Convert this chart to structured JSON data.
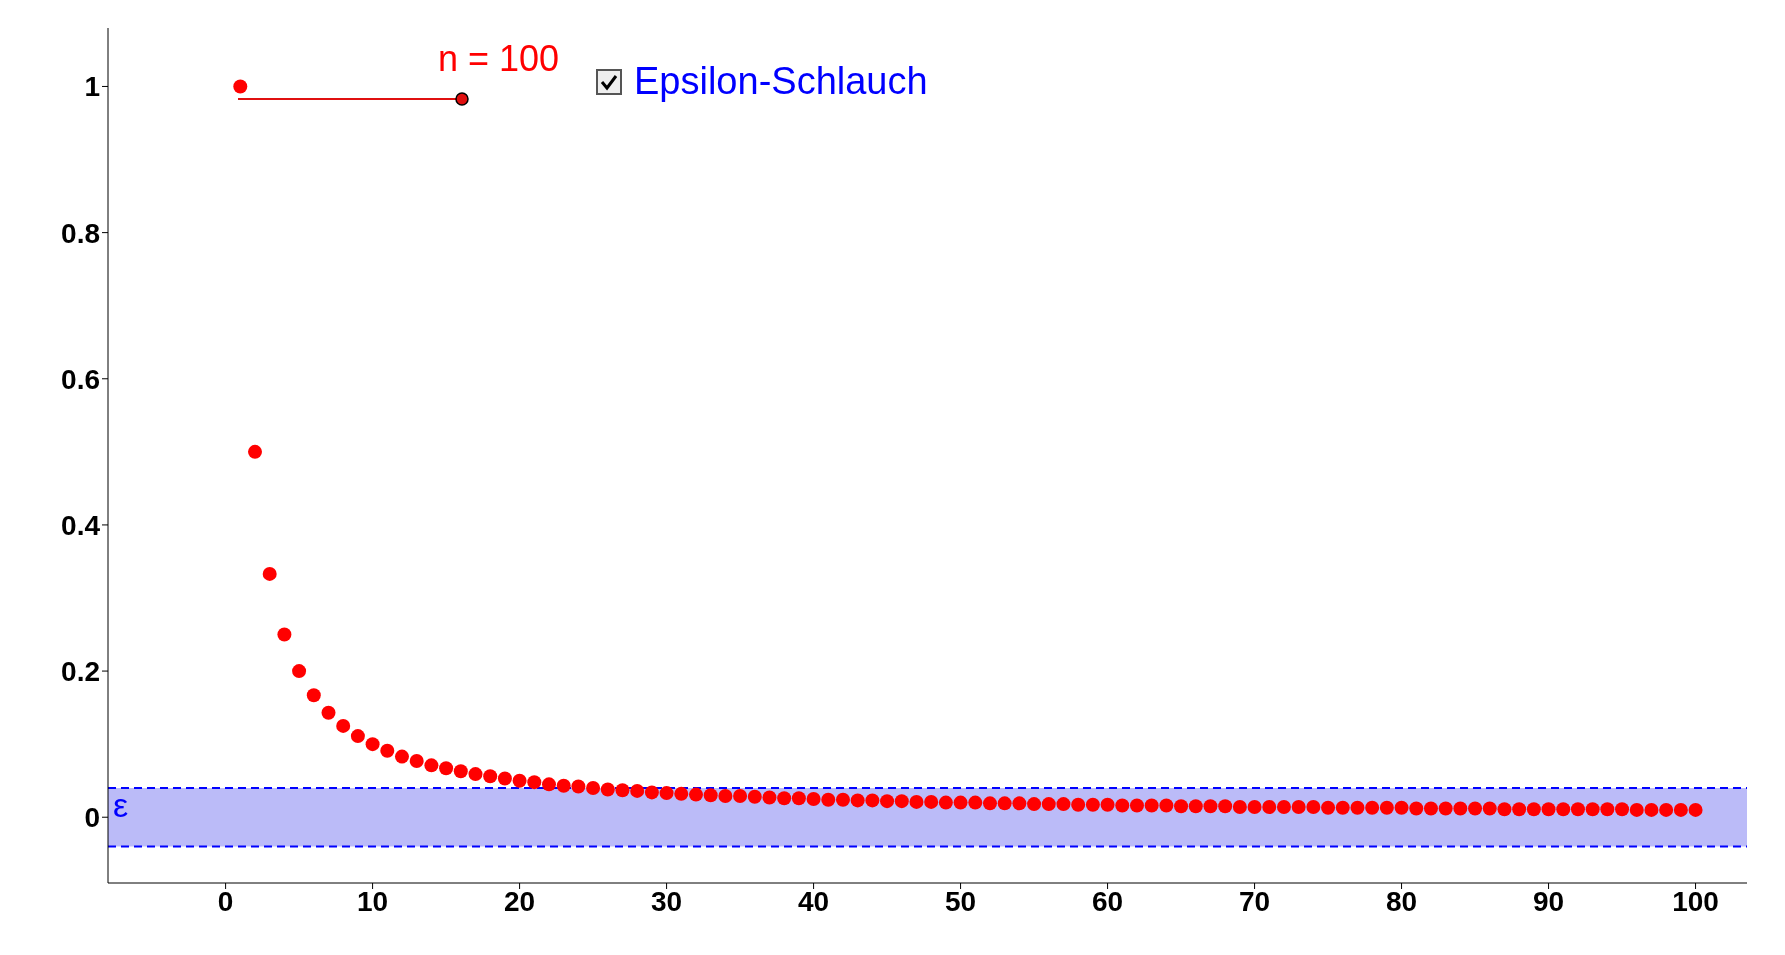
{
  "chart_data": {
    "type": "scatter",
    "marker": "circle",
    "x": [
      1,
      2,
      3,
      4,
      5,
      6,
      7,
      8,
      9,
      10,
      11,
      12,
      13,
      14,
      15,
      16,
      17,
      18,
      19,
      20,
      21,
      22,
      23,
      24,
      25,
      26,
      27,
      28,
      29,
      30,
      31,
      32,
      33,
      34,
      35,
      36,
      37,
      38,
      39,
      40,
      41,
      42,
      43,
      44,
      45,
      46,
      47,
      48,
      49,
      50,
      51,
      52,
      53,
      54,
      55,
      56,
      57,
      58,
      59,
      60,
      61,
      62,
      63,
      64,
      65,
      66,
      67,
      68,
      69,
      70,
      71,
      72,
      73,
      74,
      75,
      76,
      77,
      78,
      79,
      80,
      81,
      82,
      83,
      84,
      85,
      86,
      87,
      88,
      89,
      90,
      91,
      92,
      93,
      94,
      95,
      96,
      97,
      98,
      99,
      100
    ],
    "series": [
      {
        "color": "#ff0000",
        "values": [
          1,
          0.5,
          0.333,
          0.25,
          0.2,
          0.167,
          0.143,
          0.125,
          0.111,
          0.1,
          0.091,
          0.083,
          0.077,
          0.071,
          0.067,
          0.063,
          0.059,
          0.056,
          0.053,
          0.05,
          0.048,
          0.045,
          0.043,
          0.042,
          0.04,
          0.038,
          0.037,
          0.036,
          0.034,
          0.033,
          0.032,
          0.031,
          0.03,
          0.029,
          0.029,
          0.028,
          0.027,
          0.026,
          0.026,
          0.025,
          0.024,
          0.024,
          0.023,
          0.023,
          0.022,
          0.022,
          0.021,
          0.021,
          0.02,
          0.02,
          0.02,
          0.019,
          0.019,
          0.019,
          0.018,
          0.018,
          0.018,
          0.017,
          0.017,
          0.017,
          0.016,
          0.016,
          0.016,
          0.016,
          0.015,
          0.015,
          0.015,
          0.015,
          0.014,
          0.014,
          0.014,
          0.014,
          0.014,
          0.014,
          0.013,
          0.013,
          0.013,
          0.013,
          0.013,
          0.013,
          0.012,
          0.012,
          0.012,
          0.012,
          0.012,
          0.012,
          0.011,
          0.011,
          0.011,
          0.011,
          0.011,
          0.011,
          0.011,
          0.011,
          0.011,
          0.01,
          0.01,
          0.01,
          0.01,
          0.01
        ]
      }
    ],
    "xlim": [
      -8,
      103.5
    ],
    "xticks": [
      0,
      10,
      20,
      30,
      40,
      50,
      60,
      70,
      80,
      90,
      100
    ],
    "ylim": [
      -0.09,
      1.08
    ],
    "yticks": [
      0,
      0.2,
      0.4,
      0.6,
      0.8,
      1
    ],
    "bands": [
      {
        "axis": "y",
        "from": -0.04,
        "to": 0.04,
        "color": "#bbbbf8"
      }
    ],
    "ref_lines": [
      {
        "axis": "y",
        "value": 0.04,
        "label": "ε",
        "color": "#0000ff",
        "line_style": "dashed"
      },
      {
        "axis": "y",
        "value": -0.04,
        "label": null,
        "color": "#0000ff",
        "line_style": "dashed"
      }
    ],
    "annotations": [
      "n = 100",
      "Epsilon-Schlauch"
    ]
  }
}
